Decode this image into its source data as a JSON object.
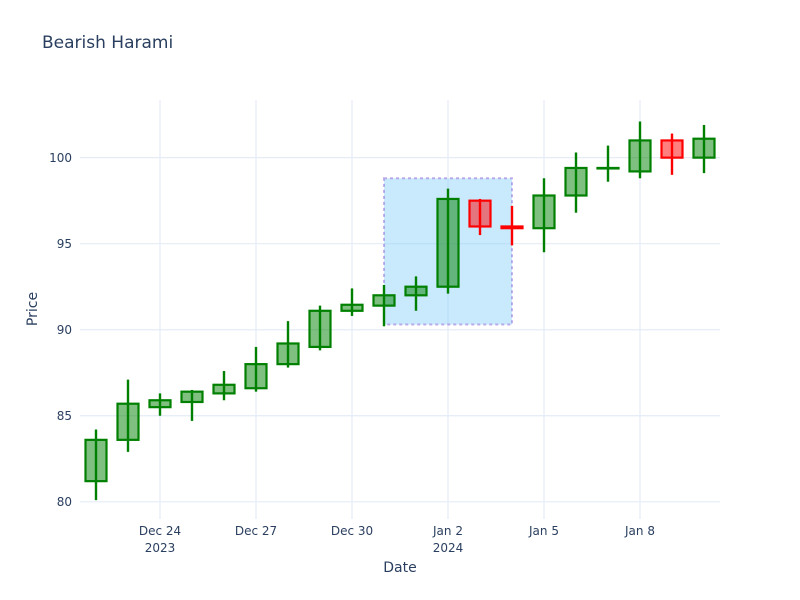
{
  "title": "Bearish Harami",
  "colors": {
    "text": "#2a3f5f",
    "background": "#ffffff",
    "grid": "#e5ecf6",
    "increasing_line": "#008000",
    "increasing_fill": "rgba(0,128,0,0.5)",
    "decreasing_line": "#ff0000",
    "decreasing_fill": "rgba(255,0,0,0.5)",
    "highlight_fill": "rgba(135,206,250,0.45)",
    "highlight_border": "rgba(147,112,219,0.55)"
  },
  "chart_data": {
    "type": "candlestick",
    "title": "Bearish Harami",
    "xlabel": "Date",
    "ylabel": "Price",
    "grid": true,
    "legend": "none",
    "dates": [
      "2023-12-22",
      "2023-12-23",
      "2023-12-24",
      "2023-12-25",
      "2023-12-26",
      "2023-12-27",
      "2023-12-28",
      "2023-12-29",
      "2023-12-30",
      "2023-12-31",
      "2024-01-01",
      "2024-01-02",
      "2024-01-03",
      "2024-01-04",
      "2024-01-05",
      "2024-01-06",
      "2024-01-07",
      "2024-01-08",
      "2024-01-09",
      "2024-01-10"
    ],
    "open": [
      81.2,
      83.6,
      85.5,
      85.8,
      86.3,
      86.6,
      88.0,
      89.0,
      91.1,
      91.4,
      92.0,
      92.5,
      97.5,
      96.0,
      95.9,
      97.8,
      99.4,
      99.2,
      101.0,
      100.0
    ],
    "high": [
      84.2,
      87.1,
      86.3,
      86.5,
      87.6,
      89.0,
      90.5,
      91.4,
      92.4,
      92.6,
      93.1,
      98.2,
      97.6,
      97.2,
      98.8,
      100.3,
      100.7,
      102.1,
      101.4,
      101.9
    ],
    "low": [
      80.1,
      82.9,
      85.0,
      84.7,
      85.9,
      86.4,
      87.8,
      88.8,
      90.8,
      90.2,
      91.1,
      92.1,
      95.5,
      94.9,
      94.5,
      96.8,
      98.6,
      98.8,
      99.0,
      99.1
    ],
    "close": [
      83.6,
      85.7,
      85.9,
      86.4,
      86.8,
      88.0,
      89.2,
      91.1,
      91.45,
      92.0,
      92.5,
      97.6,
      96.0,
      95.9,
      97.8,
      99.4,
      99.4,
      101.0,
      100.0,
      101.1
    ],
    "ylim": [
      79.0,
      103.35
    ],
    "yticks": [
      80,
      85,
      90,
      95,
      100
    ],
    "xticks": [
      {
        "index": 2,
        "label": "Dec 24",
        "sublabel": "2023"
      },
      {
        "index": 5,
        "label": "Dec 27",
        "sublabel": ""
      },
      {
        "index": 8,
        "label": "Dec 30",
        "sublabel": ""
      },
      {
        "index": 11,
        "label": "Jan 2",
        "sublabel": "2024"
      },
      {
        "index": 14,
        "label": "Jan 5",
        "sublabel": ""
      },
      {
        "index": 17,
        "label": "Jan 8",
        "sublabel": ""
      }
    ],
    "highlight_region": {
      "name": "bearish-harami-pattern",
      "x0_index": 9,
      "x1_index": 13,
      "y0": 90.3,
      "y1": 98.8
    }
  }
}
